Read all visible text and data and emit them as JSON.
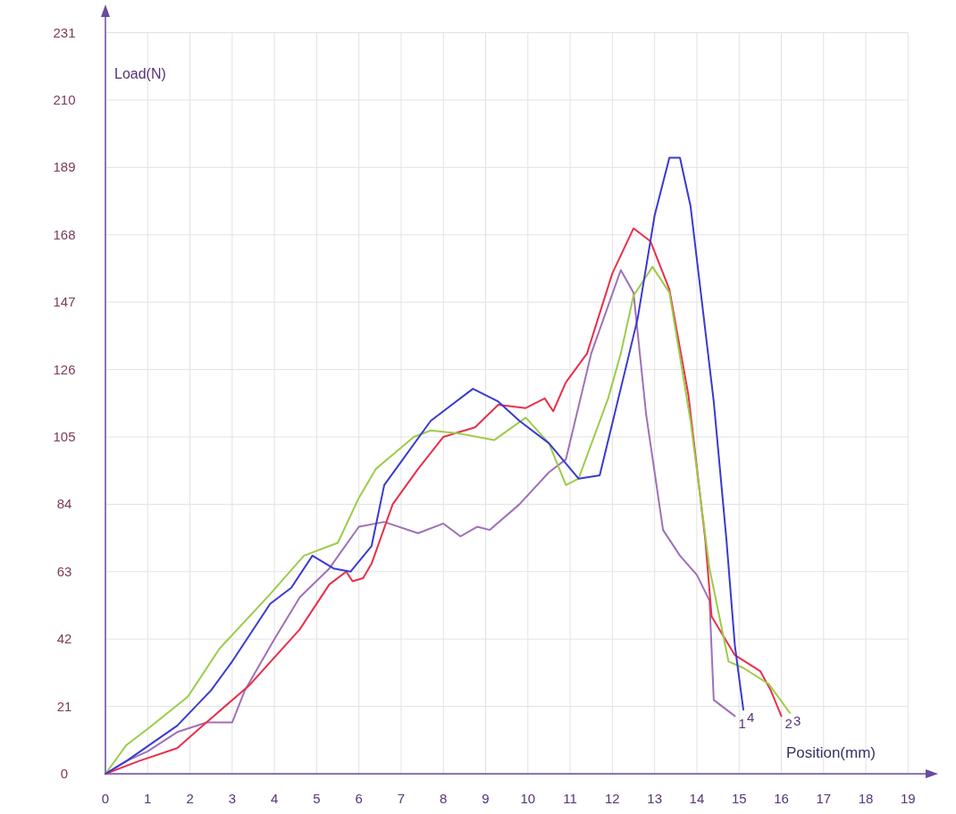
{
  "chart_data": {
    "type": "line",
    "xlabel": "Position(mm)",
    "ylabel": "Load(N)",
    "xlim": [
      0,
      19.5
    ],
    "ylim": [
      0,
      237
    ],
    "xticks": [
      0,
      1,
      2,
      3,
      4,
      5,
      6,
      7,
      8,
      9,
      10,
      11,
      12,
      13,
      14,
      15,
      16,
      17,
      18,
      19
    ],
    "yticks": [
      0,
      21,
      42,
      63,
      84,
      105,
      126,
      147,
      168,
      189,
      210,
      231
    ],
    "grid": true,
    "series": [
      {
        "name": "1",
        "color": "#a070b8",
        "x": [
          0,
          0.5,
          1.0,
          1.7,
          2.4,
          3.0,
          3.3,
          4.0,
          4.6,
          5.3,
          6.0,
          6.6,
          7.4,
          8.0,
          8.4,
          8.8,
          9.1,
          9.8,
          10.5,
          10.9,
          11.5,
          12.2,
          12.5,
          12.8,
          13.2,
          13.6,
          14.0,
          14.3,
          14.4,
          14.9
        ],
        "values": [
          0,
          4,
          7,
          13,
          16,
          16,
          26,
          42,
          55,
          64,
          77,
          78.5,
          75,
          78,
          74,
          77,
          76,
          84,
          94,
          98,
          131,
          157,
          150,
          112,
          76,
          68,
          62,
          54,
          23,
          18
        ]
      },
      {
        "name": "2",
        "color": "#e8304a",
        "x": [
          0,
          0.8,
          1.7,
          2.3,
          3.4,
          4.6,
          5.3,
          5.7,
          5.85,
          6.1,
          6.3,
          6.8,
          7.4,
          8.0,
          8.75,
          9.3,
          9.95,
          10.4,
          10.6,
          10.9,
          11.4,
          12.0,
          12.5,
          12.9,
          13.35,
          13.8,
          14.2,
          14.35,
          14.9,
          15.5,
          15.75,
          16.0
        ],
        "values": [
          0,
          4,
          8,
          15,
          27.5,
          45,
          59,
          63,
          60,
          61,
          65.5,
          84,
          95,
          105,
          108,
          115,
          114,
          117,
          113,
          122,
          131,
          156,
          170,
          166,
          151,
          118,
          73,
          49,
          37,
          32,
          26,
          18
        ]
      },
      {
        "name": "3",
        "color": "#9ccc4a",
        "x": [
          0,
          0.5,
          1.0,
          1.95,
          2.7,
          3.9,
          4.7,
          5.5,
          6.0,
          6.4,
          7.3,
          7.7,
          8.4,
          9.2,
          9.95,
          10.5,
          10.9,
          11.2,
          11.9,
          12.2,
          12.5,
          12.95,
          13.35,
          13.85,
          14.3,
          14.75,
          15.1,
          15.7,
          16.2
        ],
        "values": [
          0,
          9,
          14,
          24,
          39,
          56,
          68,
          72,
          86,
          95,
          105,
          107,
          106,
          104,
          111,
          103,
          90,
          92,
          117,
          131,
          149,
          158,
          150,
          110,
          64,
          35,
          33,
          28,
          19
        ]
      },
      {
        "name": "4",
        "color": "#3a3ad0",
        "x": [
          0,
          0.5,
          1.7,
          2.5,
          3.0,
          3.9,
          4.4,
          4.9,
          5.4,
          5.8,
          6.3,
          6.6,
          7.7,
          8.7,
          9.3,
          9.8,
          10.5,
          11.2,
          11.7,
          12.4,
          12.6,
          13.0,
          13.35,
          13.6,
          13.85,
          14.4,
          14.7,
          14.9,
          15.1
        ],
        "values": [
          0,
          4,
          15,
          26,
          35,
          53,
          58,
          68,
          64,
          63,
          71,
          90,
          110,
          120,
          116,
          110,
          103,
          92,
          93,
          131,
          142,
          174,
          192,
          192,
          177,
          116,
          73,
          40,
          20
        ]
      }
    ]
  }
}
